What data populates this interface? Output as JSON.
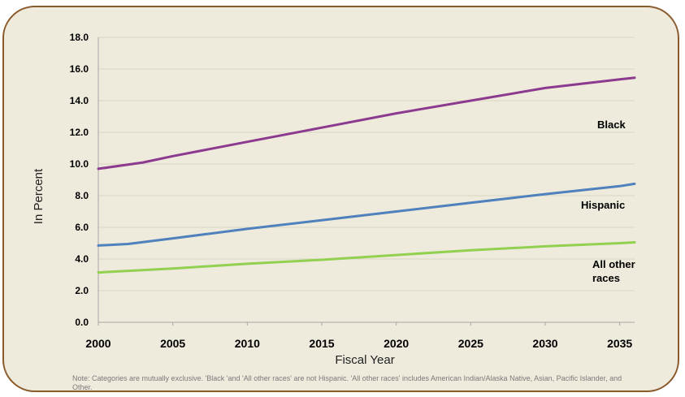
{
  "chart_data": {
    "type": "line",
    "title": "",
    "xlabel": "Fiscal Year",
    "ylabel": "In Percent",
    "xlim": [
      2000,
      2036
    ],
    "ylim": [
      0,
      18
    ],
    "x_ticks": [
      "2000",
      "2005",
      "2010",
      "2015",
      "2020",
      "2025",
      "2030",
      "2035"
    ],
    "y_ticks": [
      "0.0",
      "2.0",
      "4.0",
      "6.0",
      "8.0",
      "10.0",
      "12.0",
      "14.0",
      "16.0",
      "18.0"
    ],
    "grid": "horizontal",
    "series": [
      {
        "name": "Black",
        "label_lines": [
          "Black"
        ],
        "color": "#8b3a8f",
        "x": [
          2000,
          2003,
          2005,
          2010,
          2015,
          2020,
          2025,
          2030,
          2035,
          2036
        ],
        "values": [
          9.7,
          10.1,
          10.5,
          11.4,
          12.3,
          13.2,
          14.0,
          14.8,
          15.35,
          15.45
        ]
      },
      {
        "name": "Hispanic",
        "label_lines": [
          "Hispanic"
        ],
        "color": "#4f81bd",
        "x": [
          2000,
          2002,
          2005,
          2010,
          2015,
          2020,
          2025,
          2030,
          2035,
          2036
        ],
        "values": [
          4.85,
          4.95,
          5.3,
          5.9,
          6.45,
          7.0,
          7.55,
          8.1,
          8.6,
          8.75
        ]
      },
      {
        "name": "All other races",
        "label_lines": [
          "All other",
          "races"
        ],
        "color": "#92d050",
        "x": [
          2000,
          2005,
          2010,
          2015,
          2020,
          2025,
          2030,
          2035,
          2036
        ],
        "values": [
          3.15,
          3.4,
          3.7,
          3.95,
          4.25,
          4.55,
          4.8,
          5.0,
          5.05
        ]
      }
    ]
  },
  "note": "Note: Categories are mutually exclusive. 'Black 'and 'All other races' are not Hispanic. 'All other races' includes American Indian/Alaska Native, Asian, Pacific Islander, and Other."
}
